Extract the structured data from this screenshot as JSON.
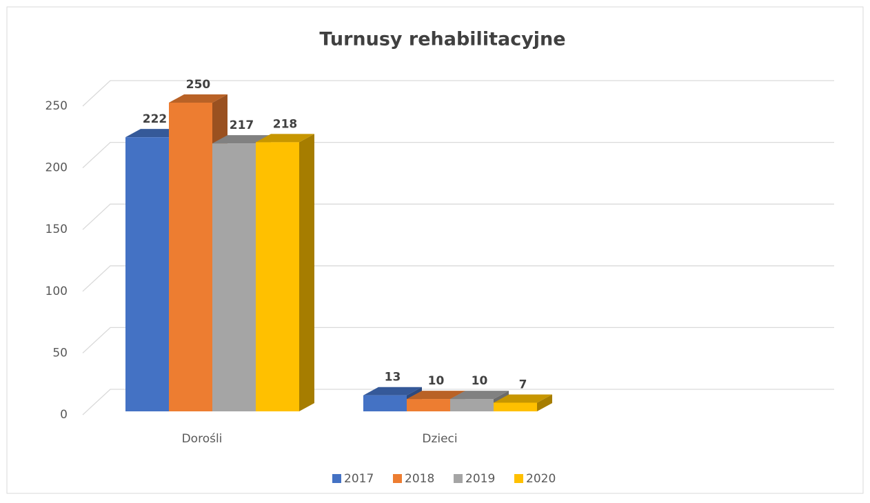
{
  "chart_data": {
    "type": "bar3d",
    "title": "Turnusy rehabilitacyjne",
    "categories": [
      "Dorośli",
      "Dzieci"
    ],
    "series": [
      {
        "name": "2017",
        "color": "#4472c4",
        "values": [
          222,
          13
        ]
      },
      {
        "name": "2018",
        "color": "#ed7d31",
        "values": [
          250,
          10
        ]
      },
      {
        "name": "2019",
        "color": "#a5a5a5",
        "values": [
          217,
          10
        ]
      },
      {
        "name": "2020",
        "color": "#ffc000",
        "values": [
          218,
          7
        ]
      }
    ],
    "ylim": [
      0,
      250
    ],
    "yticks": [
      0,
      50,
      100,
      150,
      200,
      250
    ],
    "grid": true,
    "legend": "bottom"
  }
}
